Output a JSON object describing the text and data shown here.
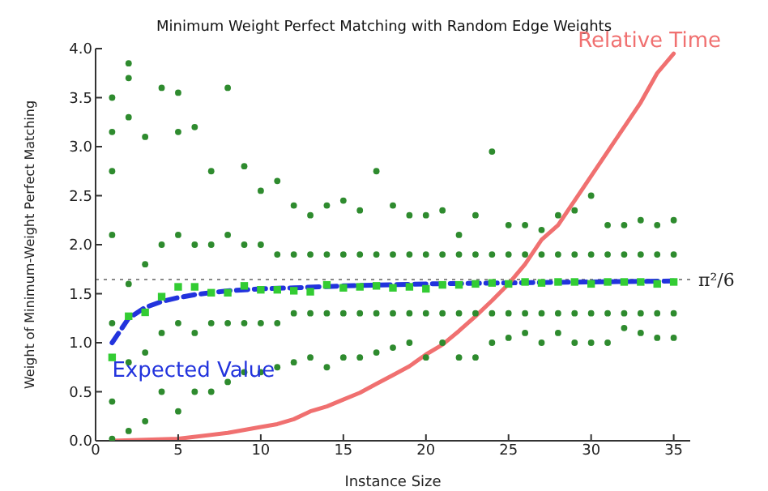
{
  "chart_data": {
    "type": "scatter",
    "title": "Minimum Weight Perfect Matching with Random Edge Weights",
    "xlabel": "Instance Size",
    "ylabel": "Weight of Minimum-Weight Perfect Matching",
    "xlim": [
      0,
      36
    ],
    "xticks": [
      0,
      5,
      10,
      15,
      20,
      25,
      30,
      35
    ],
    "ylim": [
      0,
      4
    ],
    "yticks": [
      {
        "value": 0,
        "label": "0.0"
      },
      0.5,
      {
        "value": 1,
        "label": "1.0"
      },
      1.5,
      {
        "value": 2,
        "label": "2.0"
      },
      2.5,
      {
        "value": 3,
        "label": "3.0"
      },
      3.5,
      {
        "value": 4,
        "label": "4.0"
      }
    ],
    "ref_lines": [
      {
        "axis": "y",
        "value": 1.645,
        "label": "π²/6",
        "color": "#888888",
        "line_style": "dotted"
      }
    ],
    "series": [
      {
        "marker": "circle",
        "color": "#2e8b2e",
        "x": [
          1,
          1,
          1,
          1,
          1,
          1,
          1,
          2,
          2,
          2,
          2,
          2,
          2,
          3,
          3,
          3,
          3,
          4,
          4,
          4,
          4,
          5,
          5,
          5,
          5,
          5,
          6,
          6,
          6,
          6,
          7,
          7,
          7,
          7,
          8,
          8,
          8,
          8,
          9,
          9,
          9,
          9,
          10,
          10,
          10,
          10,
          11,
          11,
          11,
          11,
          12,
          12,
          12,
          12,
          13,
          13,
          13,
          13,
          14,
          14,
          14,
          14,
          15,
          15,
          15,
          15,
          16,
          16,
          16,
          16,
          17,
          17,
          17,
          17,
          18,
          18,
          18,
          18,
          19,
          19,
          19,
          19,
          20,
          20,
          20,
          20,
          21,
          21,
          21,
          21,
          22,
          22,
          22,
          22,
          23,
          23,
          23,
          23,
          24,
          24,
          24,
          24,
          25,
          25,
          25,
          25,
          26,
          26,
          26,
          26,
          27,
          27,
          27,
          27,
          28,
          28,
          28,
          28,
          29,
          29,
          29,
          29,
          30,
          30,
          30,
          30,
          31,
          31,
          31,
          31,
          32,
          32,
          32,
          32,
          33,
          33,
          33,
          33,
          34,
          34,
          34,
          34,
          35,
          35,
          35,
          35
        ],
        "values": [
          0.02,
          0.4,
          1.2,
          2.1,
          2.75,
          3.15,
          3.5,
          0.1,
          0.8,
          1.6,
          3.3,
          3.7,
          3.85,
          0.2,
          0.9,
          1.8,
          3.1,
          0.5,
          1.1,
          2.0,
          3.6,
          0.3,
          1.2,
          2.1,
          3.15,
          3.55,
          0.5,
          1.1,
          2.0,
          3.2,
          0.5,
          1.2,
          2.0,
          2.75,
          0.6,
          1.2,
          2.1,
          3.6,
          0.7,
          1.2,
          2.0,
          2.8,
          0.7,
          1.2,
          2.0,
          2.55,
          0.75,
          1.2,
          1.9,
          2.65,
          0.8,
          1.3,
          1.9,
          2.4,
          0.85,
          1.3,
          1.9,
          2.3,
          0.75,
          1.3,
          1.9,
          2.4,
          0.85,
          1.3,
          1.9,
          2.45,
          0.85,
          1.3,
          1.9,
          2.35,
          0.9,
          1.3,
          1.9,
          2.75,
          0.95,
          1.3,
          1.9,
          2.4,
          1.0,
          1.3,
          1.9,
          2.3,
          0.85,
          1.3,
          1.9,
          2.3,
          1.0,
          1.3,
          1.9,
          2.35,
          0.85,
          1.3,
          1.9,
          2.1,
          0.85,
          1.3,
          1.9,
          2.3,
          1.0,
          1.3,
          1.9,
          2.95,
          1.05,
          1.3,
          1.9,
          2.2,
          1.1,
          1.3,
          1.9,
          2.2,
          1.0,
          1.3,
          1.9,
          2.15,
          1.1,
          1.3,
          1.9,
          2.3,
          1.0,
          1.3,
          1.9,
          2.35,
          1.0,
          1.3,
          1.9,
          2.5,
          1.0,
          1.3,
          1.9,
          2.2,
          1.15,
          1.3,
          1.9,
          2.2,
          1.1,
          1.3,
          1.9,
          2.25,
          1.05,
          1.3,
          1.9,
          2.2,
          1.05,
          1.3,
          1.9,
          2.25
        ]
      },
      {
        "marker": "square",
        "color": "#33cc33",
        "x": [
          1,
          2,
          3,
          4,
          5,
          6,
          7,
          8,
          9,
          10,
          11,
          12,
          13,
          14,
          15,
          16,
          17,
          18,
          19,
          20,
          21,
          22,
          23,
          24,
          25,
          26,
          27,
          28,
          29,
          30,
          31,
          32,
          33,
          34,
          35
        ],
        "values": [
          0.85,
          1.27,
          1.31,
          1.47,
          1.57,
          1.57,
          1.51,
          1.51,
          1.58,
          1.54,
          1.54,
          1.53,
          1.52,
          1.59,
          1.56,
          1.57,
          1.58,
          1.56,
          1.57,
          1.55,
          1.59,
          1.59,
          1.6,
          1.61,
          1.6,
          1.62,
          1.61,
          1.62,
          1.62,
          1.6,
          1.62,
          1.62,
          1.62,
          1.6,
          1.62
        ]
      },
      {
        "type": "line",
        "name": "Expected Value",
        "marker": "none",
        "line_style": "dashed",
        "color": "#2233dd",
        "x": [
          1,
          2,
          3,
          4,
          5,
          6,
          7,
          8,
          9,
          10,
          12,
          15,
          20,
          25,
          30,
          35
        ],
        "values": [
          1.0,
          1.25,
          1.36,
          1.42,
          1.46,
          1.49,
          1.51,
          1.53,
          1.54,
          1.55,
          1.56,
          1.58,
          1.6,
          1.61,
          1.62,
          1.63
        ]
      },
      {
        "type": "line",
        "name": "Relative Time",
        "marker": "none",
        "line_style": "solid",
        "color": "#f07070",
        "x": [
          1,
          5,
          8,
          10,
          11,
          12,
          13,
          14,
          15,
          16,
          17,
          18,
          19,
          20,
          21,
          22,
          23,
          24,
          25,
          26,
          27,
          28,
          29,
          30,
          31,
          32,
          33,
          34,
          35
        ],
        "values": [
          0,
          0.02,
          0.08,
          0.14,
          0.17,
          0.22,
          0.3,
          0.35,
          0.42,
          0.49,
          0.58,
          0.67,
          0.76,
          0.88,
          0.98,
          1.12,
          1.27,
          1.43,
          1.6,
          1.8,
          2.05,
          2.2,
          2.45,
          2.7,
          2.95,
          3.2,
          3.45,
          3.75,
          3.95
        ]
      }
    ]
  }
}
